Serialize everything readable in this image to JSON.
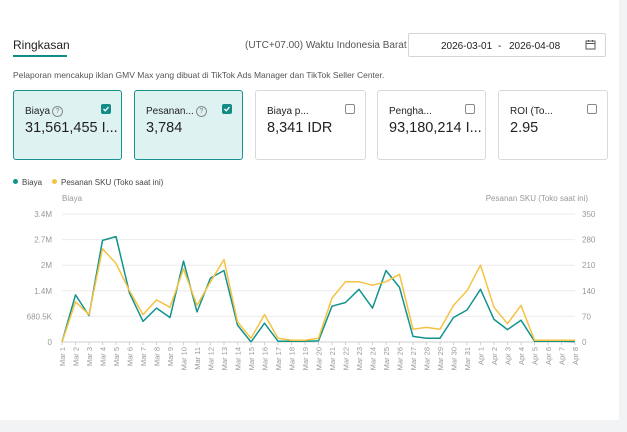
{
  "header": {
    "tab": "Ringkasan",
    "timezone": "(UTC+07.00) Waktu Indonesia Barat",
    "date_start": "2026-03-01",
    "date_separator": "-",
    "date_end": "2026-04-08",
    "calendar_icon": "calendar-icon"
  },
  "description": "Pelaporan mencakup iklan GMV Max yang dibuat di TikTok Ads Manager dan TikTok Seller Center.",
  "metrics": [
    {
      "label": "Biaya",
      "value": "31,561,455 I...",
      "checked": true,
      "help": "?"
    },
    {
      "label": "Pesanan...",
      "value": "3,784",
      "checked": true,
      "help": "?"
    },
    {
      "label": "Biaya p...",
      "value": "8,341 IDR",
      "checked": false,
      "help": ""
    },
    {
      "label": "Penghа...",
      "value": "93,180,214 I...",
      "checked": false,
      "help": ""
    },
    {
      "label": "ROI (To...",
      "value": "2.95",
      "checked": false,
      "help": ""
    }
  ],
  "legend": {
    "biaya": "Biaya",
    "pesanan": "Pesanan SKU (Toko saat ini)"
  },
  "colors": {
    "biaya": "#12938c",
    "pesanan": "#f5c242",
    "accent": "#12938c"
  },
  "chart_data": {
    "type": "line",
    "yleft_label": "Biaya",
    "yright_label": "Pesanan SKU (Toko saat ini)",
    "yleft_ticks": [
      "3.4M",
      "2.7M",
      "2M",
      "1.4M",
      "680.5K",
      "0"
    ],
    "yright_ticks": [
      "350",
      "280",
      "210",
      "140",
      "70",
      "0"
    ],
    "yleft_lim": [
      0,
      3400000
    ],
    "yright_lim": [
      0,
      350
    ],
    "grid": true,
    "x": [
      "Mar 1",
      "Mar 2",
      "Mar 3",
      "Mar 4",
      "Mar 5",
      "Mar 6",
      "Mar 7",
      "Mar 8",
      "Mar 9",
      "Mar 10",
      "Mar 11",
      "Mar 12",
      "Mar 13",
      "Mar 14",
      "Mar 15",
      "Mar 16",
      "Mar 17",
      "Mar 18",
      "Mar 19",
      "Mar 20",
      "Mar 21",
      "Mar 22",
      "Mar 23",
      "Mar 24",
      "Mar 25",
      "Mar 26",
      "Mar 27",
      "Mar 28",
      "Mar 29",
      "Mar 30",
      "Mar 31",
      "Apr 1",
      "Apr 2",
      "Apr 3",
      "Apr 4",
      "Apr 5",
      "Apr 6",
      "Apr 7",
      "Apr 8"
    ],
    "series": [
      {
        "name": "Biaya",
        "axis": "left",
        "values": [
          0,
          1250000,
          700000,
          2700000,
          2800000,
          1300000,
          550000,
          900000,
          650000,
          2150000,
          800000,
          1700000,
          1900000,
          450000,
          0,
          500000,
          20000,
          20000,
          20000,
          30000,
          950000,
          1050000,
          1400000,
          900000,
          1900000,
          1450000,
          150000,
          100000,
          100000,
          650000,
          850000,
          1400000,
          600000,
          330000,
          580000,
          20000,
          20000,
          20000,
          10000
        ]
      },
      {
        "name": "Pesanan SKU (Toko saat ini)",
        "axis": "right",
        "values": [
          0,
          110,
          75,
          255,
          215,
          140,
          75,
          115,
          95,
          200,
          100,
          165,
          225,
          55,
          10,
          75,
          10,
          5,
          5,
          10,
          120,
          165,
          165,
          155,
          165,
          185,
          35,
          40,
          35,
          100,
          140,
          210,
          95,
          50,
          100,
          5,
          5,
          5,
          5
        ]
      }
    ]
  }
}
